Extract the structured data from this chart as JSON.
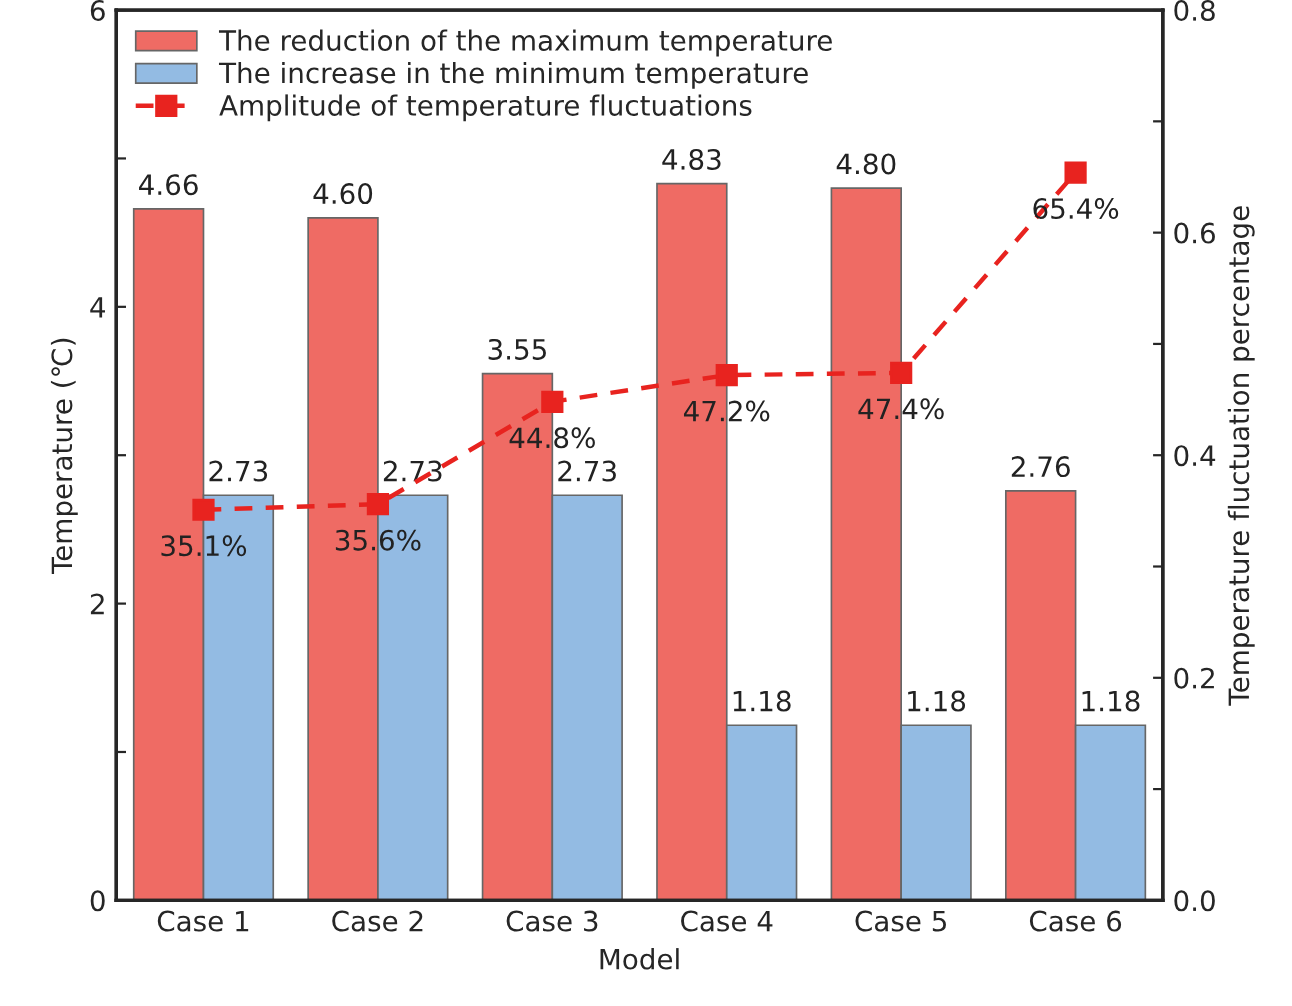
{
  "chart_data": {
    "type": "bar",
    "xlabel": "Model",
    "ylabel": "Temperature (℃)",
    "y2label": "Temperature fluctuation percentage",
    "categories": [
      "Case 1",
      "Case 2",
      "Case 3",
      "Case 4",
      "Case 5",
      "Case 6"
    ],
    "series": [
      {
        "name": "The reduction of the maximum temperature",
        "color": "#ef6b64",
        "values": [
          4.66,
          4.6,
          3.55,
          4.83,
          4.8,
          2.76
        ],
        "value_labels": [
          "4.66",
          "4.60",
          "3.55",
          "4.83",
          "4.80",
          "2.76"
        ]
      },
      {
        "name": "The increase in the minimum temperature",
        "color": "#93bbe3",
        "values": [
          2.73,
          2.73,
          2.73,
          1.18,
          1.18,
          1.18
        ],
        "value_labels": [
          "2.73",
          "2.73",
          "2.73",
          "1.18",
          "1.18",
          "1.18"
        ]
      },
      {
        "name": "Amplitude of temperature fluctuations",
        "type": "line",
        "axis": "y2",
        "color": "#e8231f",
        "marker": "square",
        "line_style": "dashed",
        "values": [
          0.351,
          0.356,
          0.448,
          0.472,
          0.474,
          0.654
        ],
        "value_labels": [
          "35.1%",
          "35.6%",
          "44.8%",
          "47.2%",
          "47.4%",
          "65.4%"
        ]
      }
    ],
    "ylim": [
      0,
      6
    ],
    "yticks": [
      0,
      {
        "value": 1,
        "label": null
      },
      2,
      {
        "value": 3,
        "label": null
      },
      4,
      {
        "value": 5,
        "label": null
      },
      6
    ],
    "y2lim": [
      0,
      0.8
    ],
    "y2ticks": [
      "0.0",
      {
        "value": 0.1,
        "label": null
      },
      {
        "value": 0.2,
        "label": "0.2"
      },
      {
        "value": 0.3,
        "label": null
      },
      {
        "value": 0.4,
        "label": "0.4"
      },
      {
        "value": 0.5,
        "label": null
      },
      {
        "value": 0.6,
        "label": "0.6"
      },
      {
        "value": 0.7,
        "label": null
      },
      {
        "value": 0.8,
        "label": "0.8"
      }
    ],
    "legend": "top left",
    "grid": false
  }
}
